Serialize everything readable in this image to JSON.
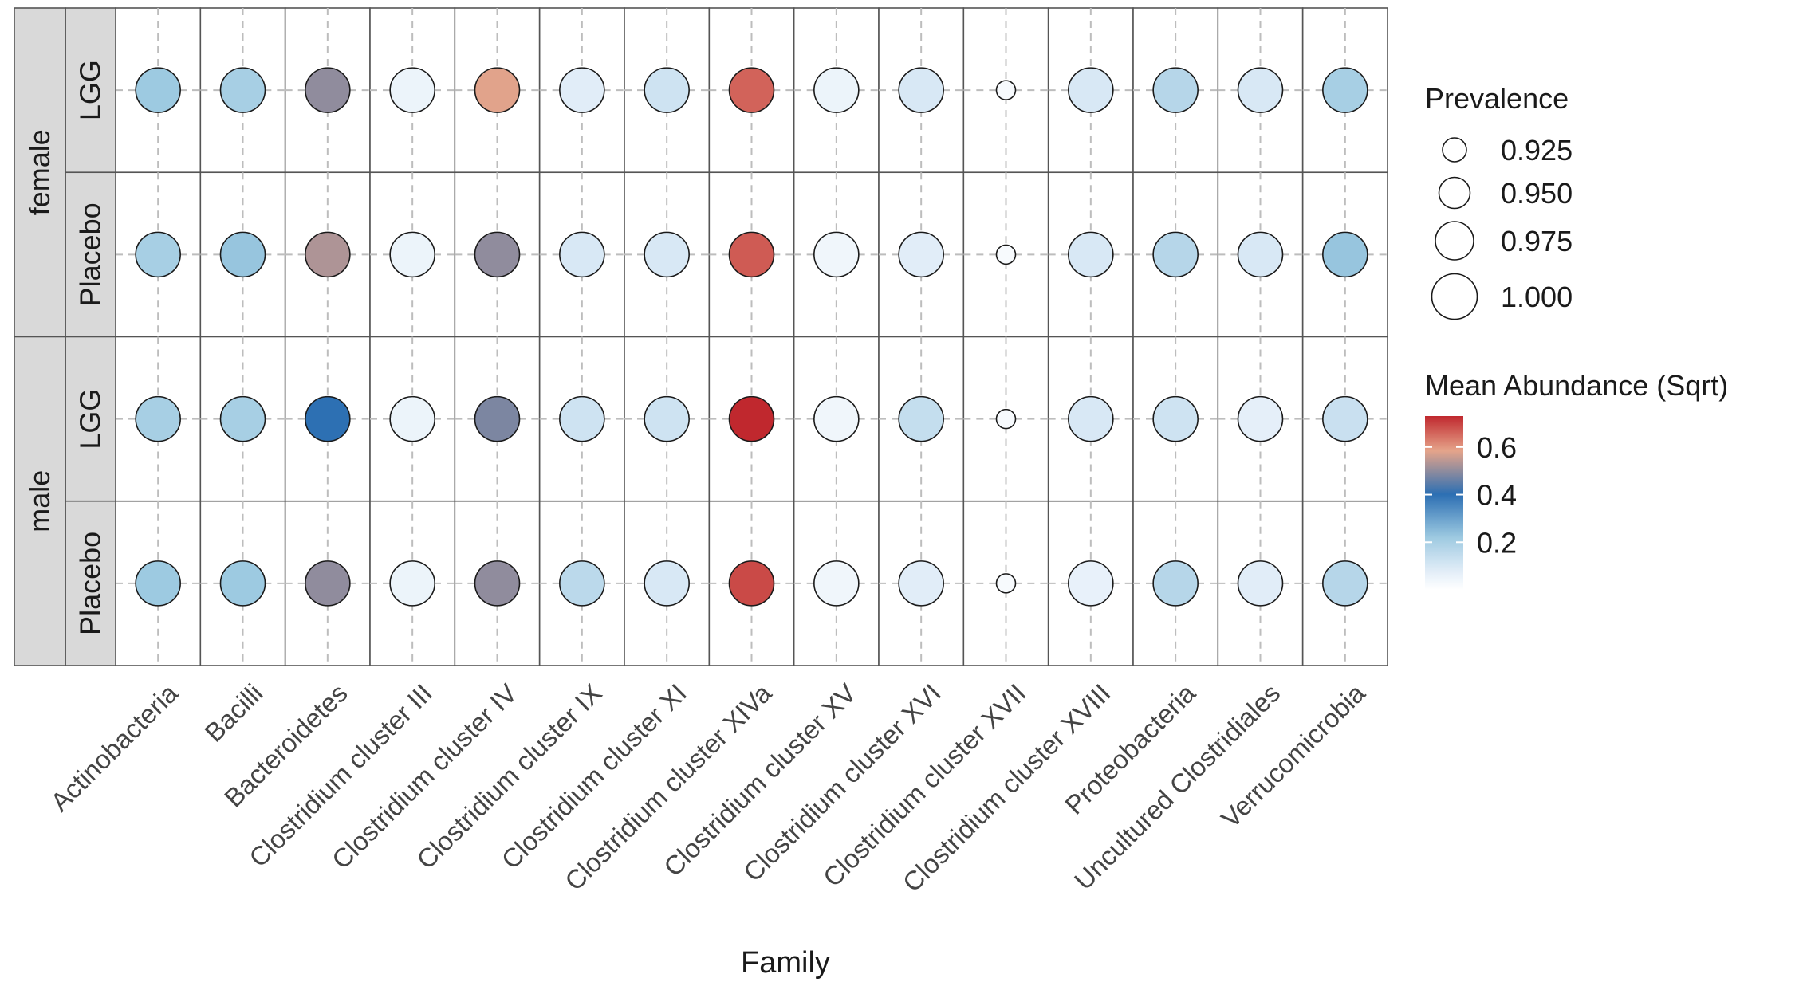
{
  "chart_data": {
    "type": "scatter",
    "xlabel": "Family",
    "families": [
      "Actinobacteria",
      "Bacilli",
      "Bacteroidetes",
      "Clostridium cluster III",
      "Clostridium cluster IV",
      "Clostridium cluster IX",
      "Clostridium cluster XI",
      "Clostridium cluster XIVa",
      "Clostridium cluster XV",
      "Clostridium cluster XVI",
      "Clostridium cluster XVII",
      "Clostridium cluster XVIII",
      "Proteobacteria",
      "Uncultured Clostridiales",
      "Verrucomicrobia"
    ],
    "sex_groups": [
      "female",
      "male"
    ],
    "treatments": [
      "LGG",
      "Placebo"
    ],
    "panels": [
      {
        "sex": "female",
        "treatment": "LGG",
        "prevalence": [
          1,
          1,
          1,
          1,
          1,
          1,
          1,
          1,
          1,
          1,
          0.91,
          1,
          1,
          1,
          1
        ],
        "abundance": [
          0.22,
          0.2,
          0.5,
          0.05,
          0.58,
          0.08,
          0.12,
          0.66,
          0.05,
          0.1,
          0.02,
          0.1,
          0.17,
          0.1,
          0.2
        ]
      },
      {
        "sex": "female",
        "treatment": "Placebo",
        "prevalence": [
          1,
          1,
          1,
          1,
          1,
          1,
          1,
          1,
          1,
          1,
          0.91,
          1,
          1,
          1,
          1
        ],
        "abundance": [
          0.2,
          0.23,
          0.53,
          0.05,
          0.5,
          0.1,
          0.1,
          0.67,
          0.04,
          0.08,
          0.02,
          0.1,
          0.17,
          0.1,
          0.23
        ]
      },
      {
        "sex": "male",
        "treatment": "LGG",
        "prevalence": [
          1,
          1,
          1,
          1,
          1,
          1,
          1,
          1,
          1,
          1,
          0.91,
          1,
          1,
          1,
          1
        ],
        "abundance": [
          0.2,
          0.2,
          0.4,
          0.05,
          0.48,
          0.12,
          0.12,
          0.73,
          0.04,
          0.14,
          0.02,
          0.1,
          0.12,
          0.07,
          0.13
        ]
      },
      {
        "sex": "male",
        "treatment": "Placebo",
        "prevalence": [
          1,
          1,
          1,
          1,
          1,
          1,
          1,
          1,
          1,
          1,
          0.91,
          1,
          1,
          1,
          1
        ],
        "abundance": [
          0.22,
          0.22,
          0.5,
          0.05,
          0.5,
          0.16,
          0.1,
          0.69,
          0.04,
          0.08,
          0.02,
          0.06,
          0.17,
          0.08,
          0.17
        ]
      }
    ],
    "legend": {
      "size_title": "Prevalence",
      "size_breaks": [
        "0.925",
        "0.950",
        "0.975",
        "1.000"
      ],
      "color_title": "Mean Abundance (Sqrt)",
      "color_breaks": [
        "0.6",
        "0.4",
        "0.2"
      ],
      "color_domain": [
        0.0,
        0.73
      ],
      "color_stops": [
        "#ffffff",
        "#deebf7",
        "#9ecae1",
        "#2c6fb3",
        "#e5a48a",
        "#c0282e"
      ]
    },
    "grid": true,
    "grid_style": "dashed"
  }
}
